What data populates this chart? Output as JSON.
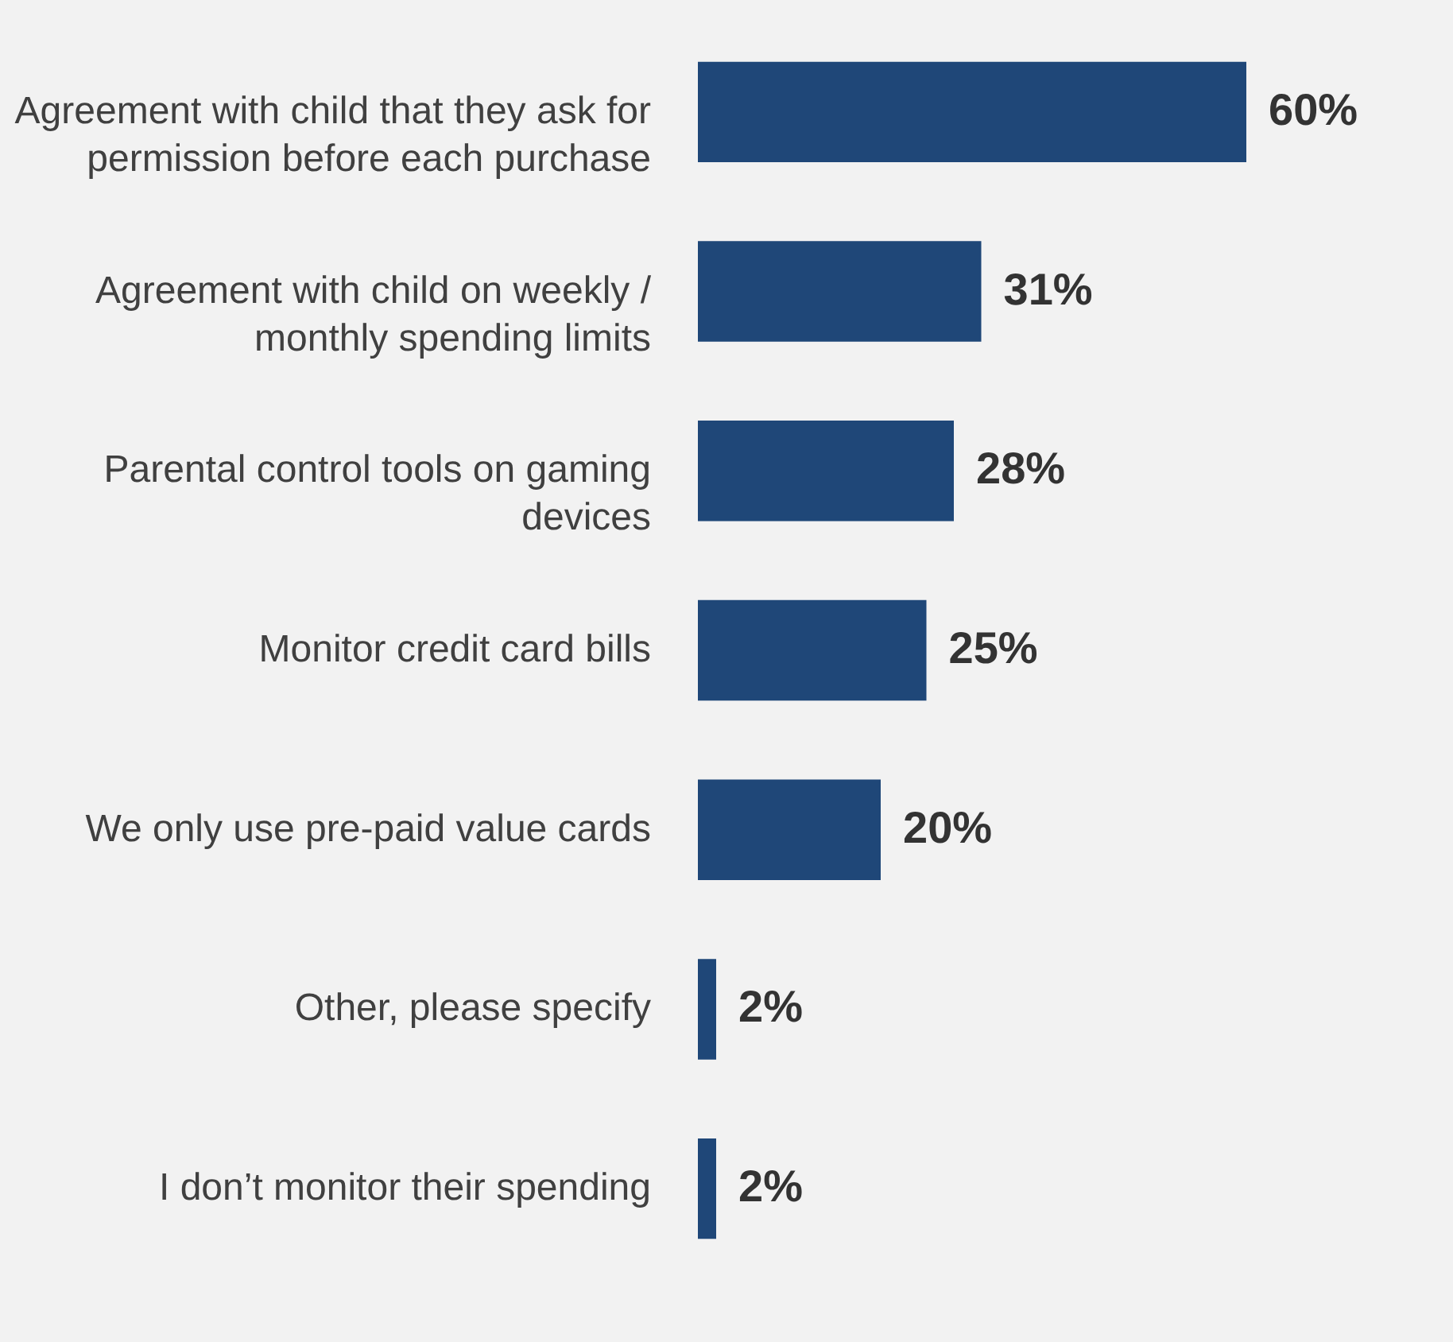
{
  "chart_data": {
    "type": "bar",
    "orientation": "horizontal",
    "categories": [
      "Agreement with child that they ask for permission before each purchase",
      "Agreement with child on weekly / monthly spending limits",
      "Parental control tools on gaming devices",
      "Monitor credit card bills",
      "We only use pre-paid value cards",
      "Other, please specify",
      "I don’t monitor their spending"
    ],
    "values": [
      60,
      31,
      28,
      25,
      20,
      2,
      2
    ],
    "value_labels": [
      "60%",
      "31%",
      "28%",
      "25%",
      "20%",
      "2%",
      "2%"
    ],
    "color": "#1f4778"
  }
}
